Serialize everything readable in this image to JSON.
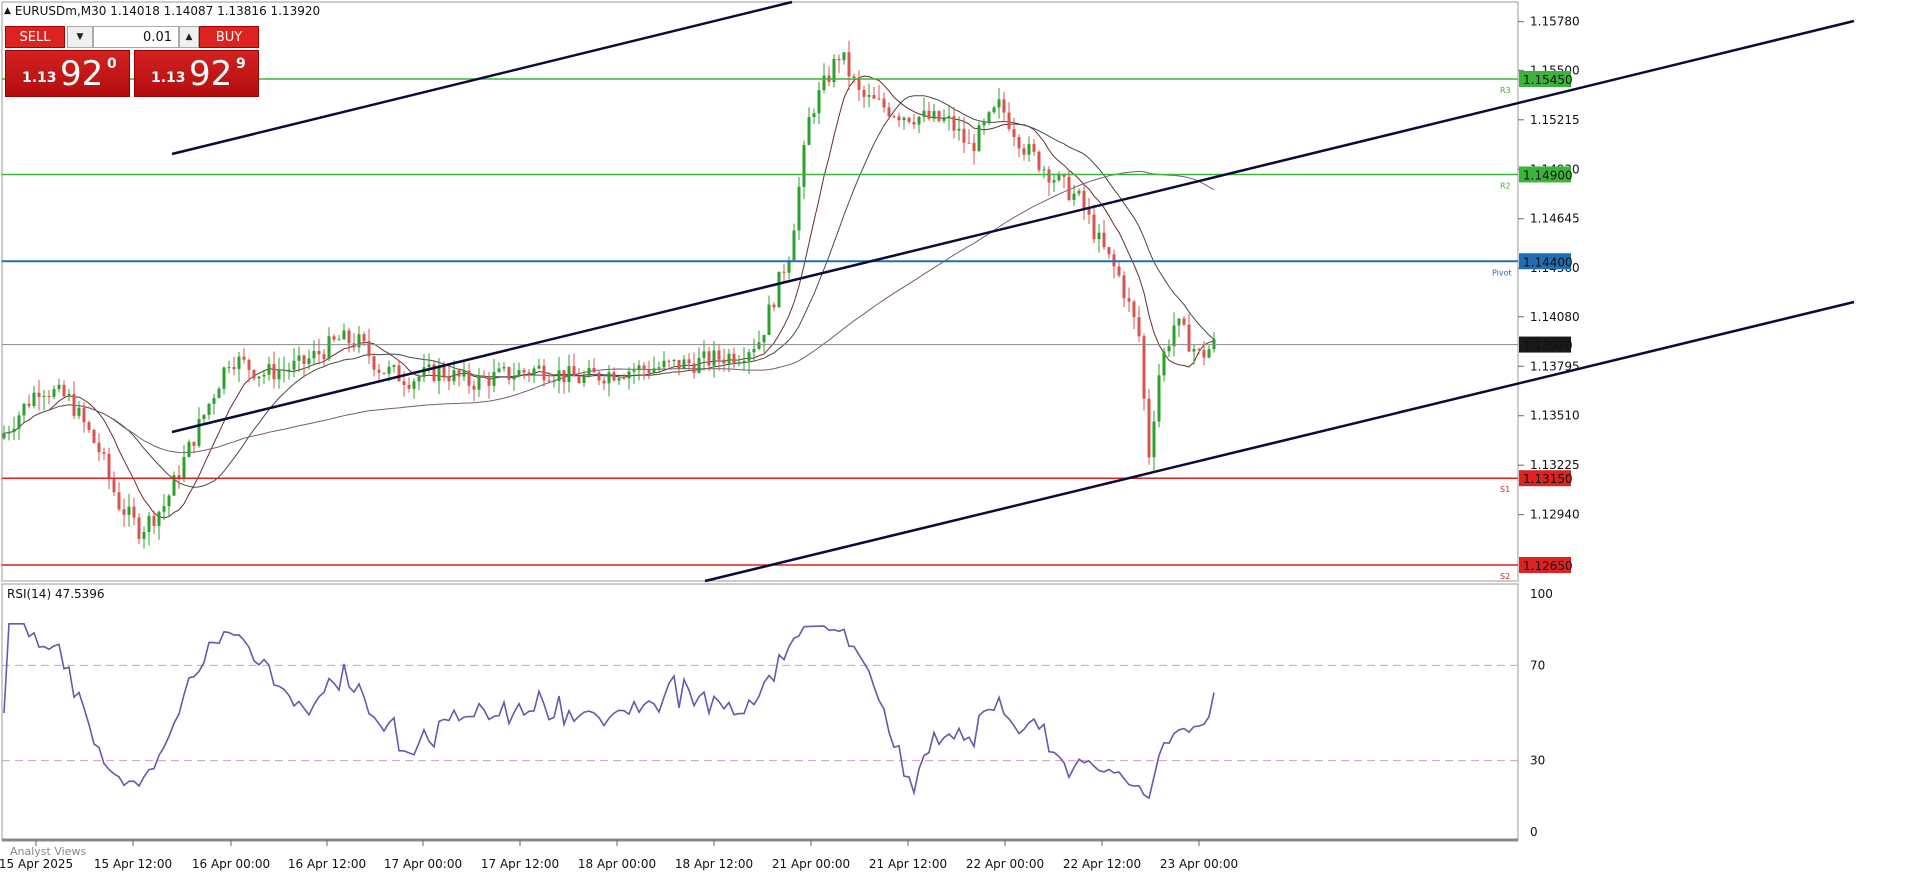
{
  "header": {
    "symbol_info": "EURUSDm,M30  1.14018 1.14087 1.13816 1.13920"
  },
  "trade_panel": {
    "sell_label": "SELL",
    "buy_label": "BUY",
    "lot_value": "0.01",
    "sell_price": {
      "prefix": "1.13",
      "big": "92",
      "sup": "0"
    },
    "buy_price": {
      "prefix": "1.13",
      "big": "92",
      "sup": "9"
    },
    "color": "#cc1111"
  },
  "price_axis": {
    "ticks": [
      "1.15780",
      "1.15500",
      "1.15215",
      "1.14930",
      "1.14645",
      "1.14360",
      "1.14080",
      "1.13795",
      "1.13510",
      "1.13225",
      "1.12940"
    ]
  },
  "levels": [
    {
      "name": "R3",
      "price": "1.15450",
      "color": "#3cb43c",
      "tag": "R3"
    },
    {
      "name": "R2",
      "price": "1.14900",
      "color": "#3cb43c",
      "tag": "R2"
    },
    {
      "name": "Pivot",
      "price": "1.14400",
      "color": "#1f6fb5",
      "tag": "Pivot"
    },
    {
      "name": "S1",
      "price": "1.13150",
      "color": "#dd2222",
      "tag": "S1"
    },
    {
      "name": "S2",
      "price": "1.12650",
      "color": "#dd2222",
      "tag": "S2"
    }
  ],
  "current_price": {
    "value": "1.13920",
    "color": "#1a1a1a"
  },
  "time_axis": {
    "labels": [
      "15 Apr 2025",
      "15 Apr 12:00",
      "16 Apr 00:00",
      "16 Apr 12:00",
      "17 Apr 00:00",
      "17 Apr 12:00",
      "18 Apr 00:00",
      "18 Apr 12:00",
      "21 Apr 00:00",
      "21 Apr 12:00",
      "22 Apr 00:00",
      "22 Apr 12:00",
      "23 Apr 00:00"
    ]
  },
  "rsi": {
    "label": "RSI(14) 47.5396",
    "levels": [
      "100",
      "70",
      "30",
      "0"
    ],
    "color": "#6a55b0"
  },
  "footer": {
    "analyst_views": "Analyst Views"
  },
  "colors": {
    "bull_candle": "#2ca02c",
    "bear_candle": "#d9534f",
    "channel": "#0b0b3b",
    "ma_fast": "#6b2b2b",
    "ma_slow": "#3f4d4d",
    "ma_long": "#7a5a7a"
  }
}
